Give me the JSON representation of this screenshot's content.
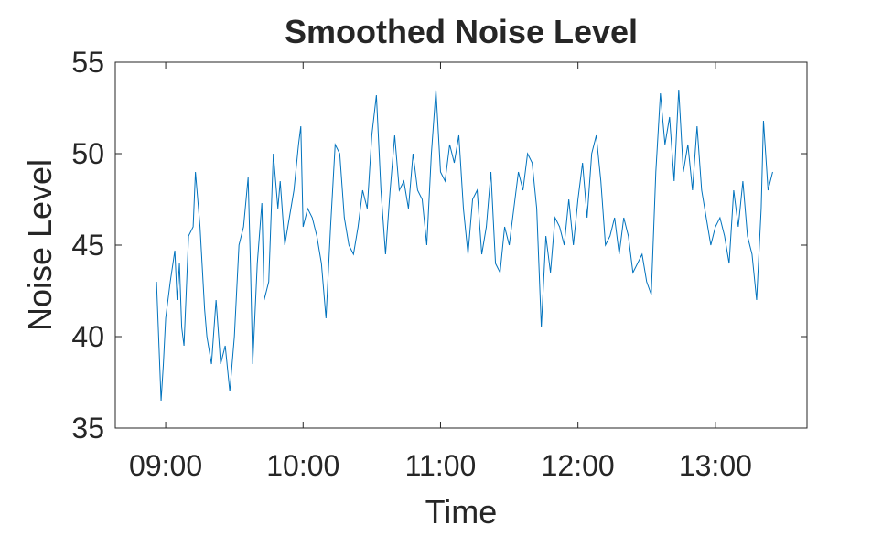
{
  "chart_data": {
    "type": "line",
    "title": "Smoothed Noise Level",
    "x_label": "Time",
    "y_label": "Noise Level",
    "x": [
      "08:56",
      "08:58",
      "08:59",
      "09:00",
      "09:02",
      "09:04",
      "09:05",
      "09:06",
      "09:07",
      "09:08",
      "09:10",
      "09:12",
      "09:13",
      "09:15",
      "09:17",
      "09:18",
      "09:20",
      "09:22",
      "09:24",
      "09:26",
      "09:28",
      "09:30",
      "09:32",
      "09:34",
      "09:36",
      "09:37",
      "09:38",
      "09:40",
      "09:42",
      "09:43",
      "09:45",
      "09:47",
      "09:49",
      "09:50",
      "09:52",
      "09:54",
      "09:56",
      "09:58",
      "09:59",
      "10:00",
      "10:02",
      "10:04",
      "10:06",
      "10:08",
      "10:10",
      "10:12",
      "10:14",
      "10:16",
      "10:18",
      "10:20",
      "10:22",
      "10:24",
      "10:26",
      "10:28",
      "10:30",
      "10:32",
      "10:34",
      "10:36",
      "10:38",
      "10:40",
      "10:42",
      "10:44",
      "10:46",
      "10:48",
      "10:50",
      "10:52",
      "10:54",
      "10:56",
      "10:58",
      "11:00",
      "11:02",
      "11:04",
      "11:06",
      "11:08",
      "11:10",
      "11:12",
      "11:14",
      "11:16",
      "11:18",
      "11:20",
      "11:22",
      "11:24",
      "11:26",
      "11:28",
      "11:30",
      "11:32",
      "11:34",
      "11:36",
      "11:38",
      "11:40",
      "11:42",
      "11:44",
      "11:46",
      "11:48",
      "11:50",
      "11:52",
      "11:54",
      "11:56",
      "11:58",
      "12:00",
      "12:02",
      "12:04",
      "12:06",
      "12:08",
      "12:10",
      "12:12",
      "12:14",
      "12:16",
      "12:18",
      "12:20",
      "12:22",
      "12:24",
      "12:26",
      "12:28",
      "12:30",
      "12:32",
      "12:34",
      "12:36",
      "12:38",
      "12:40",
      "12:42",
      "12:44",
      "12:46",
      "12:48",
      "12:50",
      "12:52",
      "12:54",
      "12:56",
      "12:58",
      "13:00",
      "13:02",
      "13:04",
      "13:06",
      "13:08",
      "13:10",
      "13:12",
      "13:14",
      "13:16",
      "13:18",
      "13:20",
      "13:21",
      "13:23",
      "13:25"
    ],
    "series": [
      {
        "name": "Noise Level",
        "color": "#0072bd",
        "values": [
          43,
          36.5,
          38.5,
          41,
          43,
          44.7,
          42,
          44,
          40.5,
          39.5,
          45.5,
          46,
          49,
          46,
          41.5,
          40,
          38.5,
          42,
          38.5,
          39.5,
          37,
          40,
          45,
          46,
          48.7,
          44,
          38.5,
          44,
          47.3,
          42,
          43,
          50,
          47,
          48.5,
          45,
          46.5,
          48,
          50.5,
          51.5,
          46,
          47,
          46.5,
          45.5,
          44,
          41,
          46,
          50.5,
          50,
          46.5,
          45,
          44.5,
          46,
          48,
          47,
          51,
          53.2,
          48,
          44.5,
          48,
          51,
          48,
          48.5,
          47,
          50,
          48,
          47.5,
          45,
          50,
          53.5,
          49,
          48.5,
          50.5,
          49.5,
          51,
          47,
          44.5,
          47.5,
          48,
          44.5,
          46,
          49,
          44,
          43.5,
          46,
          45,
          47,
          49,
          48,
          50,
          49.5,
          47,
          40.5,
          45.5,
          43.5,
          46.5,
          46,
          45,
          47.5,
          45,
          47.5,
          49.5,
          46.5,
          50,
          51,
          48.5,
          45,
          45.5,
          46.5,
          44.5,
          46.5,
          45.5,
          43.5,
          44,
          44.5,
          43,
          42.3,
          49,
          53.3,
          50.5,
          52,
          48.5,
          53.5,
          49,
          50.5,
          48,
          51.5,
          48,
          46.5,
          45,
          46,
          46.5,
          45.5,
          44,
          48,
          46,
          48.5,
          45.5,
          44.5,
          42,
          47,
          51.8,
          48,
          49
        ]
      }
    ],
    "xlim": [
      "08:38",
      "13:40"
    ],
    "xticks": [
      "09:00",
      "10:00",
      "11:00",
      "12:00",
      "13:00"
    ],
    "ylim": [
      35,
      55
    ],
    "yticks": [
      35,
      40,
      45,
      50,
      55
    ]
  }
}
